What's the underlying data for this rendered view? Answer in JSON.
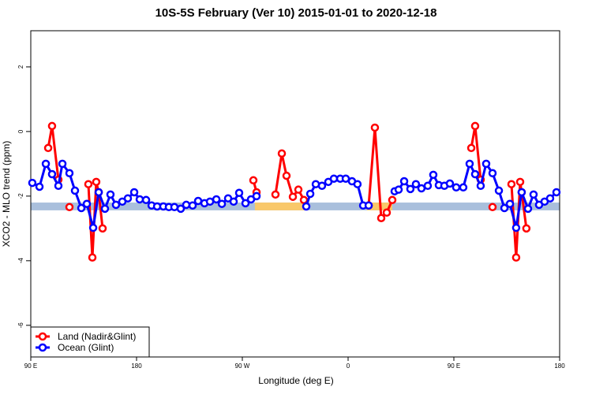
{
  "chart_data": {
    "type": "line",
    "title": "10S-5S February (Ver 10)   2015-01-01 to 2020-12-18",
    "xlabel": "Longitude (deg E)",
    "ylabel": "XCO2 - MLO trend (ppm)",
    "xlim": [
      90,
      540
    ],
    "ylim": [
      -6.98,
      3.12
    ],
    "xticks": [
      {
        "value": 90,
        "label": "90 E"
      },
      180,
      {
        "value": 270,
        "label": "90 W"
      },
      {
        "value": 360,
        "label": "0"
      },
      {
        "value": 450,
        "label": "90 E"
      },
      {
        "value": 540,
        "label": "180"
      }
    ],
    "yticks": [
      -6,
      -4,
      -2,
      0,
      2
    ],
    "legend": "bottom-left",
    "band": {
      "lower": -2.44,
      "upper": -2.2,
      "color": "#a9bfdc"
    },
    "highlights": [
      {
        "x": [
          280.7,
          325.7
        ],
        "color": "#f9c86a"
      },
      {
        "x": [
          376,
          397.6
        ],
        "color": "#f9c86a"
      }
    ],
    "series": [
      {
        "name": "Land (Nadir&Glint)",
        "color": "#ff0000",
        "x": [
          104.8,
          108.1,
          113.5,
          null,
          122.9,
          null,
          139,
          142.4,
          145.7,
          147.8,
          151.1,
          null,
          279.4,
          282.1,
          null,
          298.2,
          303.6,
          307.6,
          313,
          317.7,
          322.4,
          null,
          377.5,
          382.8,
          388.2,
          392.9,
          397.6,
          null,
          464.8,
          468.1,
          472.8,
          null,
          482.9,
          null,
          499,
          503,
          506.4,
          507.7,
          511.7
        ],
        "values": [
          -0.51,
          0.17,
          -1.49,
          null,
          -2.34,
          null,
          -1.63,
          -3.9,
          -1.56,
          -1.88,
          -3.0,
          null,
          -1.51,
          -1.88,
          null,
          -1.95,
          -0.68,
          -1.37,
          -2.02,
          -1.8,
          -2.12,
          null,
          -2.29,
          0.12,
          -2.68,
          -2.51,
          -2.12,
          null,
          -0.51,
          0.17,
          -1.49,
          null,
          -2.34,
          null,
          -1.63,
          -3.9,
          -1.56,
          -1.88,
          -3.0
        ]
      },
      {
        "name": "Ocean (Glint)",
        "color": "#0000ff",
        "x": [
          91.3,
          97.4,
          102.8,
          108.1,
          113.5,
          116.9,
          122.9,
          127.6,
          133,
          137.7,
          143.1,
          147.8,
          153.1,
          157.8,
          162.5,
          167.9,
          172.6,
          178,
          182.7,
          188.1,
          192.8,
          197.5,
          202.8,
          207.5,
          212.2,
          217.6,
          222.3,
          227.7,
          232.4,
          237.8,
          242.5,
          247.9,
          252.6,
          257.9,
          262.6,
          267.3,
          272.7,
          277.4,
          282.1,
          null,
          324.4,
          327.8,
          332.5,
          337.8,
          343.2,
          347.9,
          353.3,
          358,
          363.3,
          368,
          372.8,
          377.5,
          null,
          399.6,
          403,
          407.7,
          413,
          417.7,
          422.4,
          427.8,
          432.5,
          437.2,
          441.9,
          446.6,
          452,
          458,
          463.4,
          468.1,
          472.8,
          477.5,
          482.9,
          488.3,
          493,
          497.7,
          503,
          507.7,
          513.1,
          517.8,
          522.5,
          527.2,
          531.9,
          537.3
        ],
        "values": [
          -1.59,
          -1.71,
          -1.0,
          -1.32,
          -1.68,
          -1.0,
          -1.29,
          -1.83,
          -2.37,
          -2.24,
          -2.98,
          -1.88,
          -2.39,
          -1.95,
          -2.27,
          -2.17,
          -2.07,
          -1.88,
          -2.1,
          -2.12,
          -2.29,
          -2.32,
          -2.32,
          -2.34,
          -2.34,
          -2.39,
          -2.27,
          -2.29,
          -2.15,
          -2.22,
          -2.17,
          -2.1,
          -2.24,
          -2.07,
          -2.17,
          -1.9,
          -2.22,
          -2.1,
          -2.0,
          null,
          -2.32,
          -1.93,
          -1.63,
          -1.68,
          -1.56,
          -1.46,
          -1.46,
          -1.46,
          -1.54,
          -1.63,
          -2.29,
          -2.29,
          null,
          -1.85,
          -1.8,
          -1.54,
          -1.78,
          -1.63,
          -1.76,
          -1.68,
          -1.34,
          -1.66,
          -1.68,
          -1.61,
          -1.73,
          -1.73,
          -1.0,
          -1.32,
          -1.68,
          -1.0,
          -1.29,
          -1.83,
          -2.37,
          -2.24,
          -2.98,
          -1.88,
          -2.39,
          -1.95,
          -2.27,
          -2.17,
          -2.07,
          -1.88
        ]
      }
    ]
  }
}
